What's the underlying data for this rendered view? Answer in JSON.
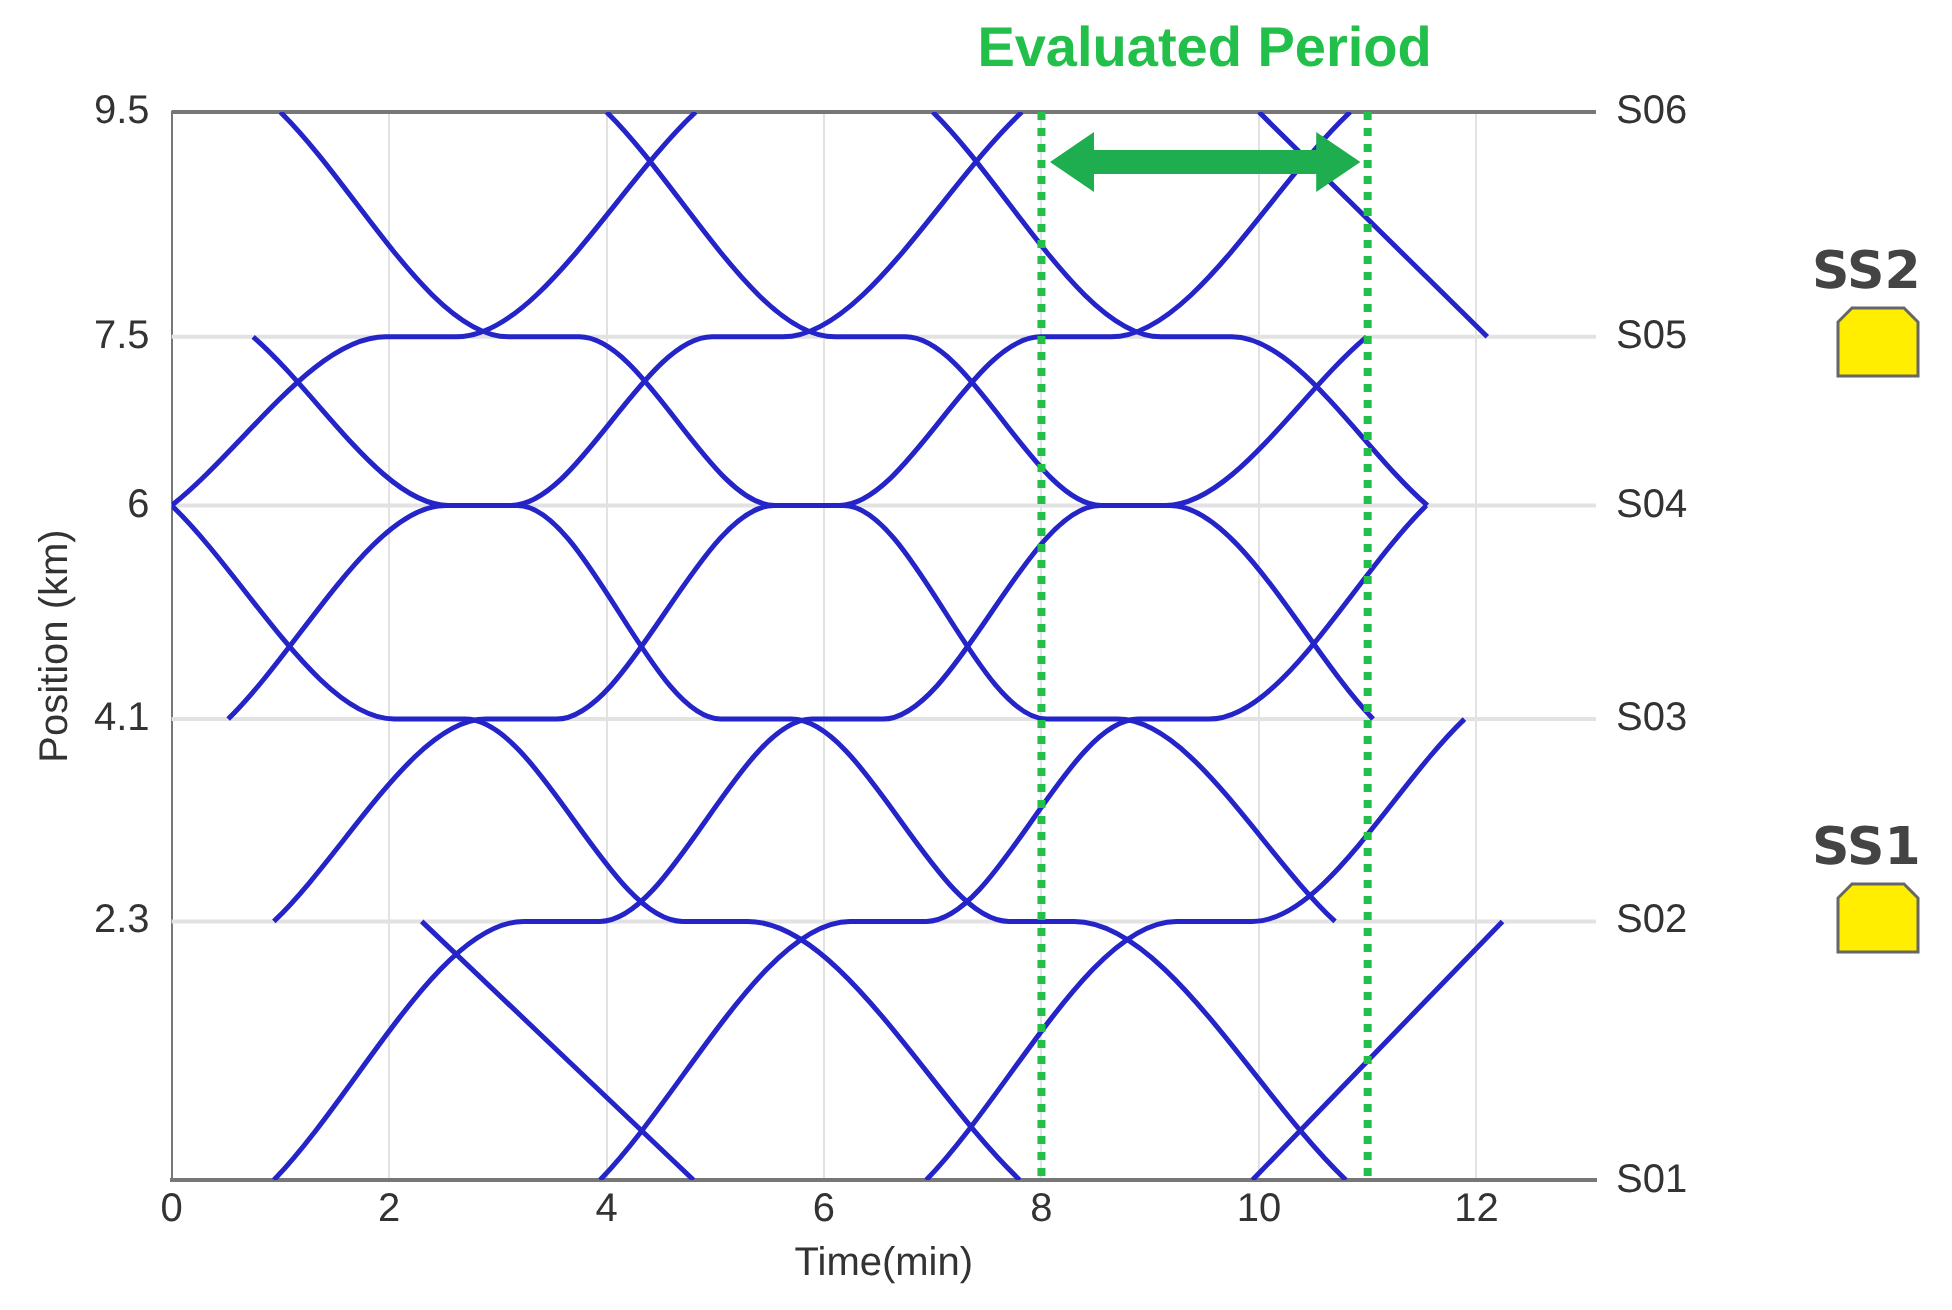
{
  "chart_data": {
    "type": "line",
    "xlabel": "Time(min)",
    "ylabel": "Position (km)",
    "xlim": [
      0,
      13.1
    ],
    "xticks": [
      0,
      2,
      4,
      6,
      8,
      10,
      12
    ],
    "ylim": [
      0,
      9.5
    ],
    "yticks": [
      2.3,
      4.1,
      6,
      7.5,
      9.5
    ],
    "grid": "x",
    "marker": "none",
    "series": [
      {
        "color": "#2424c8",
        "x": [
          2.3,
          4.8
        ],
        "values": [
          2.3,
          0
        ]
      },
      {
        "color": "#2424c8",
        "x": [
          0,
          2.05,
          2.7,
          4.7,
          5.3,
          7.8
        ],
        "values": [
          6,
          4.1,
          4.1,
          2.3,
          2.3,
          0
        ]
      },
      {
        "color": "#2424c8",
        "x": [
          0.75,
          2.55,
          3.18,
          5.05,
          5.7,
          7.7,
          8.3,
          10.8
        ],
        "values": [
          7.5,
          6,
          6,
          4.1,
          4.1,
          2.3,
          2.3,
          0
        ]
      },
      {
        "color": "#2424c8",
        "x": [
          1,
          3.1,
          3.75,
          5.55,
          6.18,
          8.05,
          8.7,
          10.7
        ],
        "values": [
          9.5,
          7.5,
          7.5,
          6,
          6,
          4.1,
          4.1,
          2.3
        ]
      },
      {
        "color": "#2424c8",
        "x": [
          4,
          6.1,
          6.75,
          8.55,
          9.18,
          11.05
        ],
        "values": [
          9.5,
          7.5,
          7.5,
          6,
          6,
          4.1
        ]
      },
      {
        "color": "#2424c8",
        "x": [
          7,
          9.1,
          9.75,
          11.55
        ],
        "values": [
          9.5,
          7.5,
          7.5,
          6
        ]
      },
      {
        "color": "#2424c8",
        "x": [
          10,
          12.1
        ],
        "values": [
          9.5,
          7.5
        ]
      },
      {
        "color": "#2424c8",
        "x": [
          0,
          1.97,
          2.62,
          4.82
        ],
        "values": [
          6,
          7.5,
          7.5,
          9.5
        ]
      },
      {
        "color": "#2424c8",
        "x": [
          0.52,
          2.52,
          3.12,
          4.97,
          5.62,
          7.82
        ],
        "values": [
          4.1,
          6,
          6,
          7.5,
          7.5,
          9.5
        ]
      },
      {
        "color": "#2424c8",
        "x": [
          0.94,
          2.89,
          3.54,
          5.54,
          6.14,
          7.99,
          8.64,
          10.84
        ],
        "values": [
          2.3,
          4.1,
          4.1,
          6,
          6,
          7.5,
          7.5,
          9.5
        ]
      },
      {
        "color": "#2424c8",
        "x": [
          0.94,
          3.24,
          3.94,
          5.89,
          6.54,
          8.54,
          9.14,
          10.99
        ],
        "values": [
          0,
          2.3,
          2.3,
          4.1,
          4.1,
          6,
          6,
          7.5
        ]
      },
      {
        "color": "#2424c8",
        "x": [
          3.94,
          6.24,
          6.94,
          8.89,
          9.54,
          11.54
        ],
        "values": [
          0,
          2.3,
          2.3,
          4.1,
          4.1,
          6
        ]
      },
      {
        "color": "#2424c8",
        "x": [
          6.94,
          9.24,
          9.94,
          11.89
        ],
        "values": [
          0,
          2.3,
          2.3,
          4.1
        ]
      },
      {
        "color": "#2424c8",
        "x": [
          9.94,
          12.24
        ],
        "values": [
          0,
          2.3
        ]
      }
    ],
    "ref_lines": [
      {
        "axis": "y",
        "value": 2.3,
        "label": "S02",
        "color": "#e2e2e2",
        "line_style": "solid"
      },
      {
        "axis": "y",
        "value": 4.1,
        "label": "S03",
        "color": "#e2e2e2",
        "line_style": "solid"
      },
      {
        "axis": "y",
        "value": 6,
        "label": "S04",
        "color": "#e2e2e2",
        "line_style": "solid"
      },
      {
        "axis": "y",
        "value": 7.5,
        "label": "S05",
        "color": "#e2e2e2",
        "line_style": "solid"
      },
      {
        "axis": "y",
        "value": 9.5,
        "label": "S06",
        "color": "#777777",
        "line_style": "solid"
      },
      {
        "axis": "x",
        "value": 8,
        "color": "#22c04a",
        "line_style": "dotted"
      },
      {
        "axis": "x",
        "value": 11,
        "color": "#22c04a",
        "line_style": "dotted"
      }
    ],
    "annotations": [
      "Evaluated Period",
      "SS2",
      "SS1",
      "S01"
    ]
  }
}
